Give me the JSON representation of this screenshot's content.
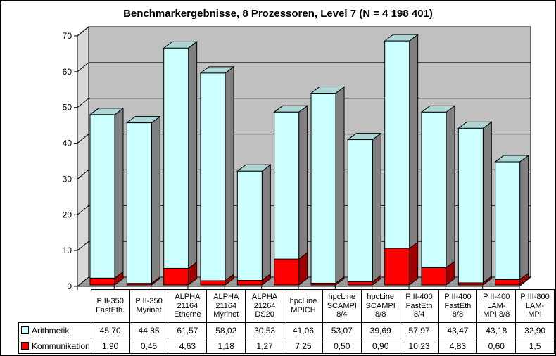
{
  "title": "Benchmarkergebnisse, 8 Prozessoren, Level 7 (N = 4 198 401)",
  "chart_data": {
    "type": "bar",
    "subtype": "3d-stacked-column",
    "title": "Benchmarkergebnisse, 8 Prozessoren, Level 7 (N = 4 198 401)",
    "xlabel": "",
    "ylabel": "",
    "ylim": [
      0,
      70
    ],
    "yticks": [
      0,
      10,
      20,
      30,
      40,
      50,
      60,
      70
    ],
    "grid": true,
    "legend_position": "table-left",
    "stack_order_bottom_to_top": [
      "Kommunikation",
      "Arithmetik"
    ],
    "categories": [
      [
        "P II-350",
        "FastEth."
      ],
      [
        "P II-350",
        "Myrinet"
      ],
      [
        "ALPHA",
        "21164",
        "Etherne"
      ],
      [
        "ALPHA",
        "21164",
        "Myrinet"
      ],
      [
        "ALPHA",
        "21264",
        "DS20"
      ],
      [
        "hpcLine",
        "MPICH"
      ],
      [
        "hpcLine",
        "SCAMPI",
        "8/4"
      ],
      [
        "hpcLine",
        "SCAMPI",
        "8/8"
      ],
      [
        "P II-400",
        "FastEth",
        "8/4"
      ],
      [
        "P II-400",
        "FastEth",
        "8/8"
      ],
      [
        "P II-400",
        "LAM-",
        "MPI 8/8"
      ],
      [
        "P III-800",
        "LAM-",
        "MPI"
      ]
    ],
    "series": [
      {
        "name": "Arithmetik",
        "color": "#CCFFFF",
        "values": [
          45.7,
          44.85,
          61.57,
          58.02,
          30.53,
          41.06,
          53.07,
          39.69,
          57.97,
          43.47,
          43.18,
          32.9
        ],
        "labels": [
          "45,70",
          "44,85",
          "61,57",
          "58,02",
          "30,53",
          "41,06",
          "53,07",
          "39,69",
          "57,97",
          "43,47",
          "43,18",
          "32,90"
        ]
      },
      {
        "name": "Kommunikation",
        "color": "#FF0000",
        "values": [
          1.9,
          0.45,
          4.63,
          1.18,
          1.27,
          7.25,
          0.5,
          0.9,
          10.23,
          4.83,
          0.6,
          1.5
        ],
        "labels": [
          "1,90",
          "0,45",
          "4,63",
          "1,18",
          "1,27",
          "7,25",
          "0,50",
          "0,90",
          "10,23",
          "4,83",
          "0,60",
          "1,5"
        ]
      }
    ]
  },
  "colors": {
    "wall": "#C0C0C0",
    "side_wall": "#D8D8D8",
    "floor": "#9C9C9C",
    "gridline": "#000000",
    "axis": "#000000",
    "bar_front_arithmetik": "#CCFFFF",
    "bar_top_arithmetik": "#ACD6D6",
    "bar_side_arithmetik": "#808080",
    "bar_front_kommunikation": "#FF0000",
    "bar_side_kommunikation": "#A00000"
  }
}
